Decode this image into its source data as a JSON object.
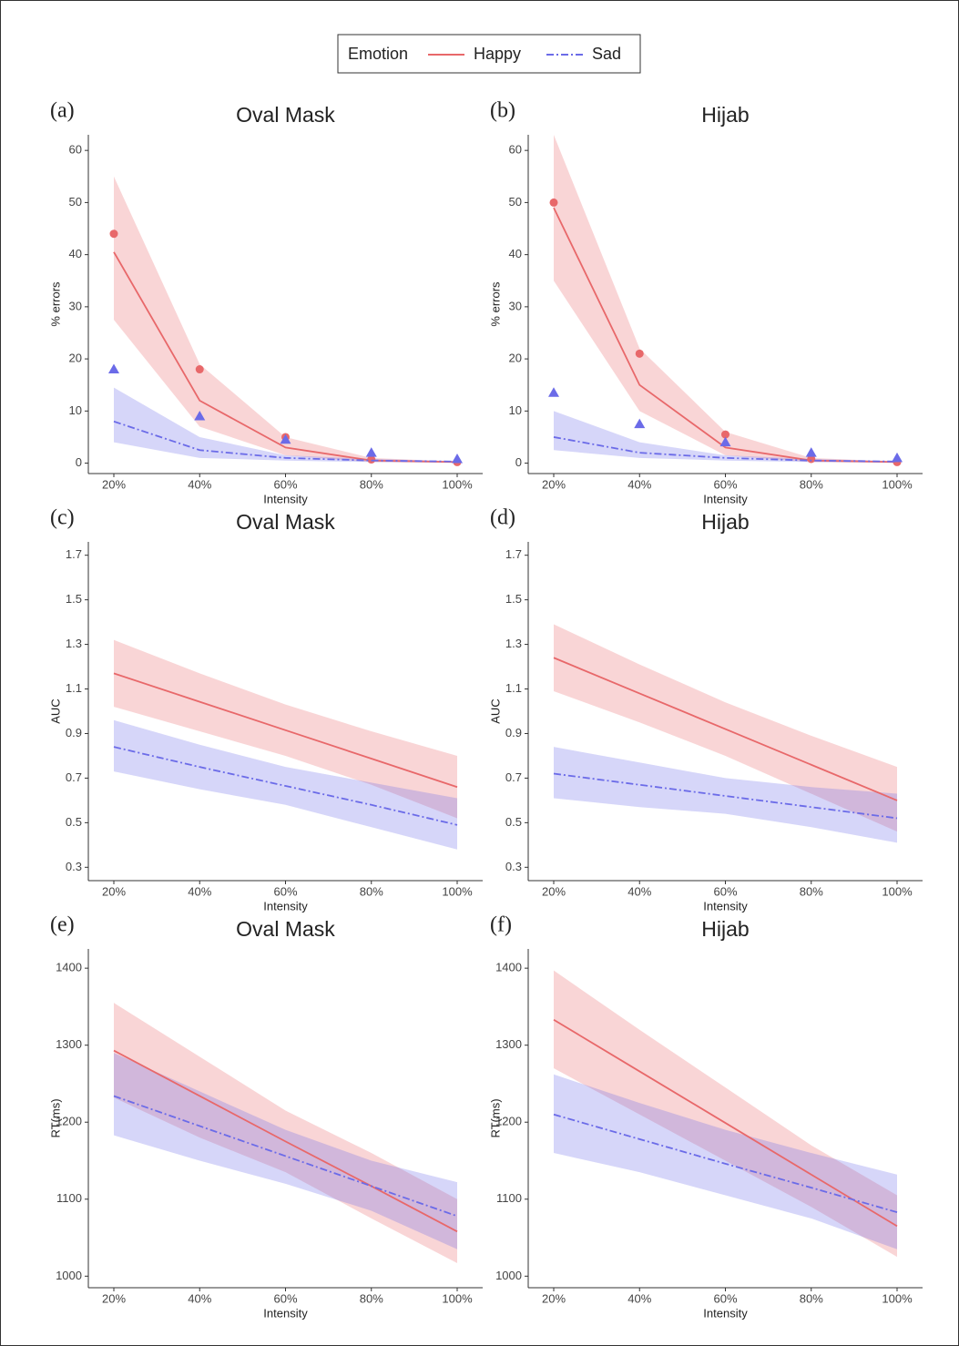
{
  "chart_data": [
    {
      "type": "line",
      "panel": "(a)",
      "title": "Oval Mask",
      "legend_title": "Emotion",
      "x_label": "Intensity",
      "y_label": "% errors",
      "categories": [
        "20%",
        "40%",
        "60%",
        "80%",
        "100%"
      ],
      "ylim": [
        -2,
        63
      ],
      "yticks": [
        0,
        10,
        20,
        30,
        40,
        50,
        60
      ],
      "series": [
        {
          "name": "Happy",
          "color": "#e8686a",
          "linestyle": "solid",
          "marker": "circle",
          "values": [
            40.5,
            12,
            3,
            0.5,
            0.2
          ],
          "upper": [
            55,
            19,
            5,
            1,
            0.3
          ],
          "lower": [
            27.5,
            7,
            1.5,
            0.2,
            0.1
          ],
          "points": [
            44,
            18,
            5,
            0.7,
            0.2
          ]
        },
        {
          "name": "Sad",
          "color": "#6b6be8",
          "linestyle": "dashdot",
          "marker": "triangle",
          "values": [
            8,
            2.5,
            1,
            0.5,
            0.3
          ],
          "upper": [
            14.5,
            5,
            1.5,
            0.8,
            0.4
          ],
          "lower": [
            4,
            1,
            0.5,
            0.2,
            0.1
          ],
          "points": [
            18,
            9,
            4.5,
            2,
            0.8
          ]
        }
      ]
    },
    {
      "type": "line",
      "panel": "(b)",
      "title": "Hijab",
      "x_label": "Intensity",
      "y_label": "% errors",
      "categories": [
        "20%",
        "40%",
        "60%",
        "80%",
        "100%"
      ],
      "ylim": [
        -2,
        63
      ],
      "yticks": [
        0,
        10,
        20,
        30,
        40,
        50,
        60
      ],
      "series": [
        {
          "name": "Happy",
          "color": "#e8686a",
          "linestyle": "solid",
          "marker": "circle",
          "values": [
            49,
            15,
            3,
            0.5,
            0.2
          ],
          "upper": [
            63,
            22,
            6,
            1,
            0.3
          ],
          "lower": [
            35,
            10,
            1.5,
            0.2,
            0.1
          ],
          "points": [
            50,
            21,
            5.5,
            0.8,
            0.2
          ]
        },
        {
          "name": "Sad",
          "color": "#6b6be8",
          "linestyle": "dashdot",
          "marker": "triangle",
          "values": [
            5,
            2,
            1,
            0.5,
            0.3
          ],
          "upper": [
            10,
            4,
            1.5,
            0.8,
            0.4
          ],
          "lower": [
            2.5,
            1,
            0.5,
            0.2,
            0.1
          ],
          "points": [
            13.5,
            7.5,
            4,
            2,
            1
          ]
        }
      ]
    },
    {
      "type": "line",
      "panel": "(c)",
      "title": "Oval Mask",
      "x_label": "Intensity",
      "y_label": "AUC",
      "categories": [
        "20%",
        "40%",
        "60%",
        "80%",
        "100%"
      ],
      "ylim": [
        0.24,
        1.76
      ],
      "yticks": [
        0.3,
        0.5,
        0.7,
        0.9,
        1.1,
        1.3,
        1.5,
        1.7
      ],
      "series": [
        {
          "name": "Happy",
          "color": "#e8686a",
          "linestyle": "solid",
          "values": [
            1.17,
            1.0425,
            0.915,
            0.7875,
            0.66
          ],
          "upper": [
            1.32,
            1.17,
            1.03,
            0.91,
            0.8
          ],
          "lower": [
            1.02,
            0.91,
            0.8,
            0.67,
            0.52
          ]
        },
        {
          "name": "Sad",
          "color": "#6b6be8",
          "linestyle": "dashdot",
          "values": [
            0.84,
            0.75,
            0.665,
            0.58,
            0.49
          ],
          "upper": [
            0.96,
            0.85,
            0.75,
            0.68,
            0.61
          ],
          "lower": [
            0.73,
            0.65,
            0.58,
            0.48,
            0.38
          ]
        }
      ]
    },
    {
      "type": "line",
      "panel": "(d)",
      "title": "Hijab",
      "x_label": "Intensity",
      "y_label": "AUC",
      "categories": [
        "20%",
        "40%",
        "60%",
        "80%",
        "100%"
      ],
      "ylim": [
        0.24,
        1.76
      ],
      "yticks": [
        0.3,
        0.5,
        0.7,
        0.9,
        1.1,
        1.3,
        1.5,
        1.7
      ],
      "series": [
        {
          "name": "Happy",
          "color": "#e8686a",
          "linestyle": "solid",
          "values": [
            1.24,
            1.08,
            0.92,
            0.76,
            0.6
          ],
          "upper": [
            1.39,
            1.21,
            1.04,
            0.89,
            0.75
          ],
          "lower": [
            1.09,
            0.95,
            0.8,
            0.63,
            0.46
          ]
        },
        {
          "name": "Sad",
          "color": "#6b6be8",
          "linestyle": "dashdot",
          "values": [
            0.72,
            0.67,
            0.62,
            0.57,
            0.52
          ],
          "upper": [
            0.84,
            0.77,
            0.7,
            0.66,
            0.63
          ],
          "lower": [
            0.61,
            0.57,
            0.54,
            0.48,
            0.41
          ]
        }
      ]
    },
    {
      "type": "line",
      "panel": "(e)",
      "title": "Oval Mask",
      "x_label": "Intensity",
      "y_label": "RT(ms)",
      "categories": [
        "20%",
        "40%",
        "60%",
        "80%",
        "100%"
      ],
      "ylim": [
        985,
        1425
      ],
      "yticks": [
        1000,
        1100,
        1200,
        1300,
        1400
      ],
      "series": [
        {
          "name": "Happy",
          "color": "#e8686a",
          "linestyle": "solid",
          "values": [
            1293,
            1234,
            1175,
            1117,
            1058
          ],
          "upper": [
            1355,
            1285,
            1215,
            1160,
            1100
          ],
          "lower": [
            1232,
            1180,
            1135,
            1075,
            1017
          ]
        },
        {
          "name": "Sad",
          "color": "#6b6be8",
          "linestyle": "dashdot",
          "values": [
            1234,
            1195,
            1156,
            1117,
            1078
          ],
          "upper": [
            1290,
            1240,
            1190,
            1150,
            1122
          ],
          "lower": [
            1183,
            1150,
            1120,
            1085,
            1035
          ]
        }
      ]
    },
    {
      "type": "line",
      "panel": "(f)",
      "title": "Hijab",
      "x_label": "Intensity",
      "y_label": "RT(ms)",
      "categories": [
        "20%",
        "40%",
        "60%",
        "80%",
        "100%"
      ],
      "ylim": [
        985,
        1425
      ],
      "yticks": [
        1000,
        1100,
        1200,
        1300,
        1400
      ],
      "series": [
        {
          "name": "Happy",
          "color": "#e8686a",
          "linestyle": "solid",
          "values": [
            1333,
            1266,
            1199,
            1132,
            1065
          ],
          "upper": [
            1397,
            1320,
            1245,
            1170,
            1105
          ],
          "lower": [
            1270,
            1210,
            1150,
            1090,
            1025
          ]
        },
        {
          "name": "Sad",
          "color": "#6b6be8",
          "linestyle": "dashdot",
          "values": [
            1210,
            1178,
            1146,
            1115,
            1083
          ],
          "upper": [
            1262,
            1225,
            1190,
            1160,
            1132
          ],
          "lower": [
            1160,
            1135,
            1105,
            1075,
            1035
          ]
        }
      ]
    }
  ]
}
